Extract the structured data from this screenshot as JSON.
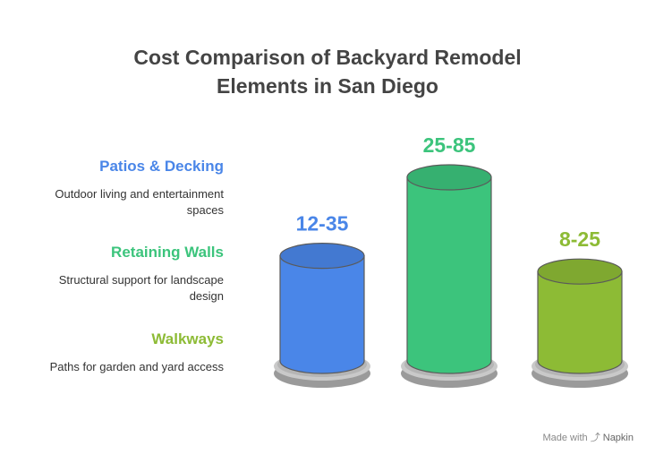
{
  "title_lines": [
    "Cost Comparison of Backyard Remodel",
    "Elements in San Diego"
  ],
  "legend": [
    {
      "title": "Patios & Decking",
      "desc_lines": [
        "Outdoor living and entertainment",
        "spaces"
      ],
      "color": "#4a86e8"
    },
    {
      "title": "Retaining Walls",
      "desc_lines": [
        "Structural support for landscape",
        "design"
      ],
      "color": "#3cc47c"
    },
    {
      "title": "Walkways",
      "desc_lines": [
        "Paths for garden and yard access"
      ],
      "color": "#8dbb35"
    }
  ],
  "chart_data": {
    "type": "bar",
    "categories": [
      "Patios & Decking",
      "Retaining Walls",
      "Walkways"
    ],
    "value_labels": [
      "12-35",
      "25-85",
      "8-25"
    ],
    "ranges": [
      [
        12,
        35
      ],
      [
        25,
        85
      ],
      [
        8,
        25
      ]
    ],
    "colors": [
      "#4a86e8",
      "#3cc47c",
      "#8dbb35"
    ],
    "title": "Cost Comparison of Backyard Remodel Elements in San Diego",
    "xlabel": "",
    "ylabel": ""
  },
  "footer": {
    "prefix": "Made with",
    "brand": "Napkin"
  }
}
